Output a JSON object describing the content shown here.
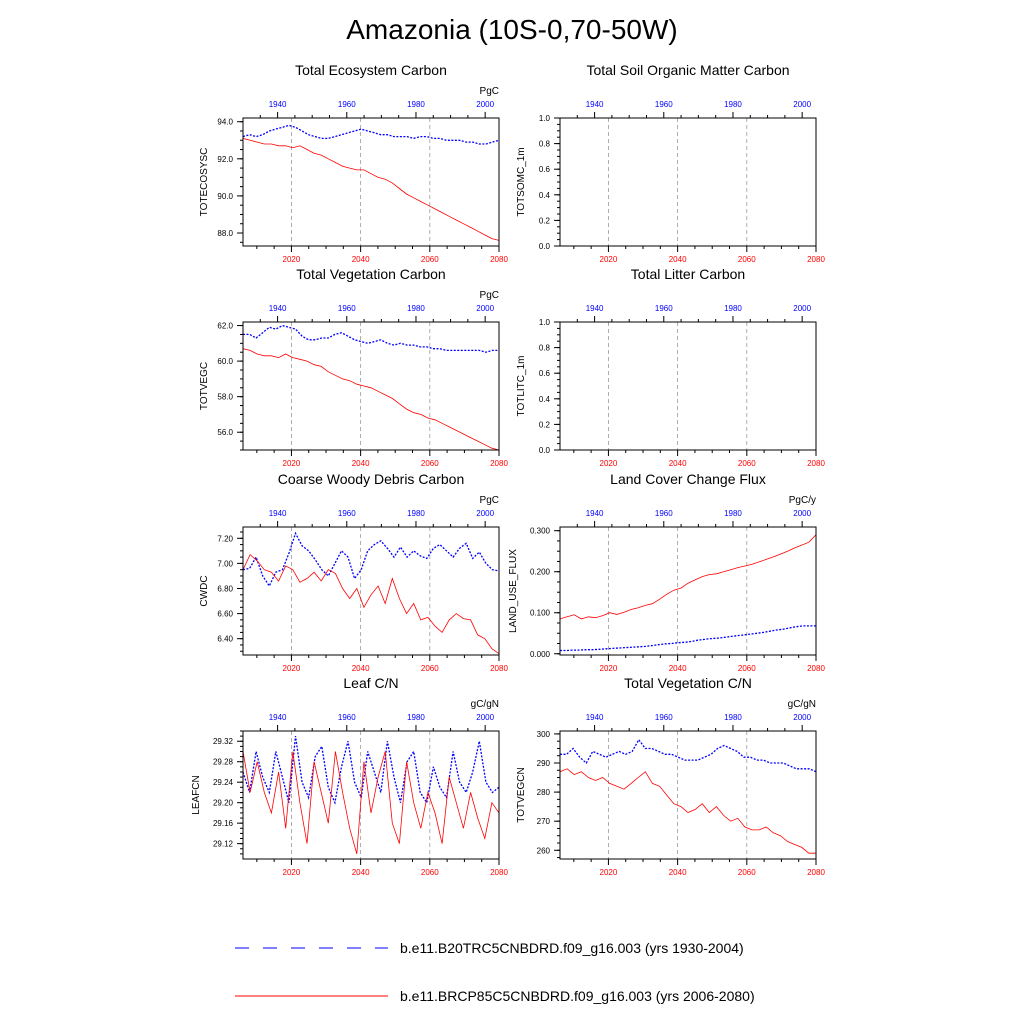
{
  "title": "Amazonia (10S-0,70-50W)",
  "colors": {
    "series_1930": "#0000ff",
    "series_2006": "#ff0000"
  },
  "legend": [
    {
      "label": "b.e11.B20TRC5CNBDRD.f09_g16.003 (yrs 1930-2004)",
      "color": "#0000ff",
      "style": "dashed"
    },
    {
      "label": "b.e11.BRCP85C5CNBDRD.f09_g16.003 (yrs 2006-2080)",
      "color": "#ff0000",
      "style": "solid"
    }
  ],
  "chart_data": [
    {
      "type": "line",
      "title": "Total Ecosystem Carbon",
      "units": "PgC",
      "ylabel": "TOTECOSYSC",
      "top_axis_ticks": [
        "1940",
        "1960",
        "1980",
        "2000"
      ],
      "bottom_axis_ticks": [
        "2020",
        "2040",
        "2060",
        "2080"
      ],
      "x_bottom": [
        2006,
        2080
      ],
      "x_top": [
        1930,
        2004
      ],
      "ylim": [
        87.3,
        94.2
      ],
      "yticks": [
        88.0,
        90.0,
        92.0,
        94.0
      ],
      "ytick_labels": [
        "88.0",
        "90.0",
        "92.0",
        "94.0"
      ],
      "series": [
        {
          "name": "b.e11.B20TRC5CNBDRD.f09_g16.003 (yrs 1930-2004)",
          "axis": "top",
          "values": [
            93.2,
            93.3,
            93.2,
            93.3,
            93.5,
            93.6,
            93.7,
            93.8,
            93.7,
            93.5,
            93.3,
            93.2,
            93.1,
            93.1,
            93.2,
            93.3,
            93.4,
            93.5,
            93.6,
            93.5,
            93.4,
            93.3,
            93.3,
            93.2,
            93.2,
            93.2,
            93.1,
            93.2,
            93.2,
            93.1,
            93.1,
            93.0,
            93.0,
            93.0,
            92.9,
            92.9,
            92.8,
            92.8,
            92.9,
            93.0
          ]
        },
        {
          "name": "b.e11.BRCP85C5CNBDRD.f09_g16.003 (yrs 2006-2080)",
          "axis": "bottom",
          "values": [
            93.1,
            93.0,
            92.9,
            92.8,
            92.8,
            92.7,
            92.7,
            92.6,
            92.7,
            92.5,
            92.3,
            92.2,
            92.0,
            91.8,
            91.6,
            91.5,
            91.4,
            91.4,
            91.2,
            91.0,
            90.9,
            90.7,
            90.4,
            90.1,
            89.9,
            89.7,
            89.5,
            89.3,
            89.1,
            88.9,
            88.7,
            88.5,
            88.3,
            88.1,
            87.9,
            87.7,
            87.6
          ]
        }
      ]
    },
    {
      "type": "line",
      "title": "Total Soil Organic Matter Carbon",
      "units": "",
      "ylabel": "TOTSOMC_1m",
      "top_axis_ticks": [
        "1940",
        "1960",
        "1980",
        "2000"
      ],
      "bottom_axis_ticks": [
        "2020",
        "2040",
        "2060",
        "2080"
      ],
      "x_bottom": [
        2006,
        2080
      ],
      "x_top": [
        1930,
        2004
      ],
      "ylim": [
        0.0,
        1.0
      ],
      "yticks": [
        0.0,
        0.2,
        0.4,
        0.6,
        0.8,
        1.0
      ],
      "ytick_labels": [
        "0.0",
        "0.2",
        "0.4",
        "0.6",
        "0.8",
        "1.0"
      ],
      "series": []
    },
    {
      "type": "line",
      "title": "Total Vegetation Carbon",
      "units": "PgC",
      "ylabel": "TOTVEGC",
      "top_axis_ticks": [
        "1940",
        "1960",
        "1980",
        "2000"
      ],
      "bottom_axis_ticks": [
        "2020",
        "2040",
        "2060",
        "2080"
      ],
      "x_bottom": [
        2006,
        2080
      ],
      "x_top": [
        1930,
        2004
      ],
      "ylim": [
        55.0,
        62.2
      ],
      "yticks": [
        56.0,
        58.0,
        60.0,
        62.0
      ],
      "ytick_labels": [
        "56.0",
        "58.0",
        "60.0",
        "62.0"
      ],
      "series": [
        {
          "name": "b.e11.B20TRC5CNBDRD.f09_g16.003 (yrs 1930-2004)",
          "axis": "top",
          "values": [
            61.5,
            61.5,
            61.3,
            61.6,
            61.9,
            61.8,
            62.0,
            61.9,
            61.8,
            61.4,
            61.2,
            61.2,
            61.3,
            61.3,
            61.5,
            61.6,
            61.4,
            61.2,
            61.1,
            61.0,
            61.1,
            61.2,
            61.0,
            60.9,
            61.0,
            60.9,
            60.9,
            60.8,
            60.8,
            60.7,
            60.7,
            60.6,
            60.6,
            60.6,
            60.6,
            60.6,
            60.6,
            60.5,
            60.6,
            60.6
          ]
        },
        {
          "name": "b.e11.BRCP85C5CNBDRD.f09_g16.003 (yrs 2006-2080)",
          "axis": "bottom",
          "values": [
            60.7,
            60.6,
            60.4,
            60.3,
            60.3,
            60.2,
            60.4,
            60.2,
            60.1,
            60.0,
            59.8,
            59.7,
            59.4,
            59.2,
            59.0,
            58.9,
            58.7,
            58.6,
            58.5,
            58.3,
            58.1,
            57.9,
            57.6,
            57.3,
            57.1,
            57.0,
            56.8,
            56.7,
            56.5,
            56.3,
            56.1,
            55.9,
            55.7,
            55.5,
            55.3,
            55.1,
            55.0
          ]
        }
      ]
    },
    {
      "type": "line",
      "title": "Total Litter Carbon",
      "units": "",
      "ylabel": "TOTLITC_1m",
      "top_axis_ticks": [
        "1940",
        "1960",
        "1980",
        "2000"
      ],
      "bottom_axis_ticks": [
        "2020",
        "2040",
        "2060",
        "2080"
      ],
      "x_bottom": [
        2006,
        2080
      ],
      "x_top": [
        1930,
        2004
      ],
      "ylim": [
        0.0,
        1.0
      ],
      "yticks": [
        0.0,
        0.2,
        0.4,
        0.6,
        0.8,
        1.0
      ],
      "ytick_labels": [
        "0.0",
        "0.2",
        "0.4",
        "0.6",
        "0.8",
        "1.0"
      ],
      "series": []
    },
    {
      "type": "line",
      "title": "Coarse Woody Debris Carbon",
      "units": "PgC",
      "ylabel": "CWDC",
      "top_axis_ticks": [
        "1940",
        "1960",
        "1980",
        "2000"
      ],
      "bottom_axis_ticks": [
        "2020",
        "2040",
        "2060",
        "2080"
      ],
      "x_bottom": [
        2006,
        2080
      ],
      "x_top": [
        1930,
        2004
      ],
      "ylim": [
        6.27,
        7.29
      ],
      "yticks": [
        6.4,
        6.6,
        6.8,
        7.0,
        7.2
      ],
      "ytick_labels": [
        "6.40",
        "6.60",
        "6.80",
        "7.00",
        "7.20"
      ],
      "series": [
        {
          "name": "b.e11.B20TRC5CNBDRD.f09_g16.003 (yrs 1930-2004)",
          "axis": "top",
          "values": [
            6.95,
            6.96,
            7.05,
            6.9,
            6.82,
            6.93,
            6.95,
            7.08,
            7.24,
            7.14,
            7.1,
            7.03,
            6.95,
            6.9,
            7.0,
            7.1,
            7.05,
            6.88,
            6.95,
            7.1,
            7.15,
            7.18,
            7.12,
            7.05,
            7.13,
            7.05,
            7.1,
            7.06,
            7.04,
            7.12,
            7.15,
            7.1,
            7.05,
            7.12,
            7.16,
            7.04,
            7.09,
            7.0,
            6.95,
            6.94
          ]
        },
        {
          "name": "b.e11.BRCP85C5CNBDRD.f09_g16.003 (yrs 2006-2080)",
          "axis": "bottom",
          "values": [
            6.95,
            7.07,
            7.02,
            6.95,
            6.93,
            6.86,
            6.98,
            6.95,
            6.85,
            6.88,
            6.93,
            6.86,
            6.95,
            6.92,
            6.8,
            6.72,
            6.8,
            6.65,
            6.75,
            6.82,
            6.68,
            6.88,
            6.72,
            6.6,
            6.68,
            6.55,
            6.57,
            6.5,
            6.45,
            6.55,
            6.6,
            6.56,
            6.55,
            6.43,
            6.4,
            6.32,
            6.28
          ]
        }
      ]
    },
    {
      "type": "line",
      "title": "Land Cover Change Flux",
      "units": "PgC/y",
      "ylabel": "LAND_USE_FLUX",
      "top_axis_ticks": [
        "1940",
        "1960",
        "1980",
        "2000"
      ],
      "bottom_axis_ticks": [
        "2020",
        "2040",
        "2060",
        "2080"
      ],
      "x_bottom": [
        2006,
        2080
      ],
      "x_top": [
        1930,
        2004
      ],
      "ylim": [
        -0.003,
        0.309
      ],
      "yticks": [
        0.0,
        0.1,
        0.2,
        0.3
      ],
      "ytick_labels": [
        "0.000",
        "0.100",
        "0.200",
        "0.300"
      ],
      "series": [
        {
          "name": "b.e11.B20TRC5CNBDRD.f09_g16.003 (yrs 1930-2004)",
          "axis": "top",
          "values": [
            0.008,
            0.008,
            0.009,
            0.009,
            0.01,
            0.01,
            0.011,
            0.012,
            0.013,
            0.014,
            0.015,
            0.016,
            0.017,
            0.018,
            0.02,
            0.022,
            0.024,
            0.025,
            0.027,
            0.028,
            0.03,
            0.033,
            0.035,
            0.037,
            0.038,
            0.04,
            0.042,
            0.044,
            0.046,
            0.048,
            0.05,
            0.052,
            0.055,
            0.058,
            0.06,
            0.063,
            0.066,
            0.068,
            0.068,
            0.068
          ]
        },
        {
          "name": "b.e11.BRCP85C5CNBDRD.f09_g16.003 (yrs 2006-2080)",
          "axis": "bottom",
          "values": [
            0.085,
            0.09,
            0.095,
            0.085,
            0.09,
            0.088,
            0.093,
            0.1,
            0.096,
            0.101,
            0.108,
            0.112,
            0.118,
            0.122,
            0.133,
            0.145,
            0.155,
            0.16,
            0.172,
            0.18,
            0.188,
            0.193,
            0.195,
            0.2,
            0.205,
            0.21,
            0.214,
            0.218,
            0.224,
            0.23,
            0.236,
            0.243,
            0.25,
            0.258,
            0.265,
            0.272,
            0.29
          ]
        }
      ]
    },
    {
      "type": "line",
      "title": "Leaf C/N",
      "units": "gC/gN",
      "ylabel": "LEAFCN",
      "top_axis_ticks": [
        "1940",
        "1960",
        "1980",
        "2000"
      ],
      "bottom_axis_ticks": [
        "2020",
        "2040",
        "2060",
        "2080"
      ],
      "x_bottom": [
        2006,
        2080
      ],
      "x_top": [
        1930,
        2004
      ],
      "ylim": [
        29.09,
        29.34
      ],
      "yticks": [
        29.12,
        29.16,
        29.2,
        29.24,
        29.28,
        29.32
      ],
      "ytick_labels": [
        "29.12",
        "29.16",
        "29.20",
        "29.24",
        "29.28",
        "29.32"
      ],
      "series": [
        {
          "name": "b.e11.B20TRC5CNBDRD.f09_g16.003 (yrs 1930-2004)",
          "axis": "top",
          "values": [
            29.26,
            29.22,
            29.3,
            29.25,
            29.22,
            29.3,
            29.25,
            29.2,
            29.33,
            29.24,
            29.21,
            29.29,
            29.31,
            29.23,
            29.2,
            29.27,
            29.32,
            29.24,
            29.21,
            29.3,
            29.26,
            29.22,
            29.32,
            29.25,
            29.2,
            29.28,
            29.3,
            29.22,
            29.2,
            29.27,
            29.23,
            29.21,
            29.3,
            29.24,
            29.22,
            29.26,
            29.32,
            29.24,
            29.22,
            29.23
          ]
        },
        {
          "name": "b.e11.BRCP85C5CNBDRD.f09_g16.003 (yrs 2006-2080)",
          "axis": "bottom",
          "values": [
            29.3,
            29.22,
            29.28,
            29.22,
            29.18,
            29.26,
            29.15,
            29.3,
            29.2,
            29.12,
            29.28,
            29.22,
            29.16,
            29.3,
            29.22,
            29.15,
            29.1,
            29.28,
            29.18,
            29.25,
            29.3,
            29.16,
            29.12,
            29.28,
            29.2,
            29.15,
            29.22,
            29.18,
            29.12,
            29.25,
            29.2,
            29.15,
            29.22,
            29.17,
            29.13,
            29.2,
            29.18
          ]
        }
      ]
    },
    {
      "type": "line",
      "title": "Total Vegetation C/N",
      "units": "gC/gN",
      "ylabel": "TOTVEGCN",
      "top_axis_ticks": [
        "1940",
        "1960",
        "1980",
        "2000"
      ],
      "bottom_axis_ticks": [
        "2020",
        "2040",
        "2060",
        "2080"
      ],
      "x_bottom": [
        2006,
        2080
      ],
      "x_top": [
        1930,
        2004
      ],
      "ylim": [
        257,
        301
      ],
      "yticks": [
        260,
        270,
        280,
        290,
        300
      ],
      "ytick_labels": [
        "260",
        "270",
        "280",
        "290",
        "300"
      ],
      "series": [
        {
          "name": "b.e11.B20TRC5CNBDRD.f09_g16.003 (yrs 1930-2004)",
          "axis": "top",
          "values": [
            293,
            293,
            295,
            292,
            290,
            294,
            293,
            292,
            293,
            294,
            293,
            294,
            298,
            295,
            295,
            294,
            293,
            293,
            292,
            291,
            291,
            291,
            292,
            293,
            295,
            296,
            295,
            294,
            292,
            292,
            291,
            291,
            290,
            290,
            290,
            289,
            288,
            288,
            288,
            287
          ]
        },
        {
          "name": "b.e11.BRCP85C5CNBDRD.f09_g16.003 (yrs 2006-2080)",
          "axis": "bottom",
          "values": [
            287,
            288,
            286,
            287,
            285,
            284,
            285,
            283,
            282,
            281,
            283,
            285,
            287,
            283,
            282,
            279,
            276,
            275,
            273,
            274,
            276,
            273,
            275,
            272,
            270,
            271,
            268,
            267,
            267,
            268,
            266,
            265,
            263,
            262,
            261,
            259,
            259
          ]
        }
      ]
    }
  ]
}
